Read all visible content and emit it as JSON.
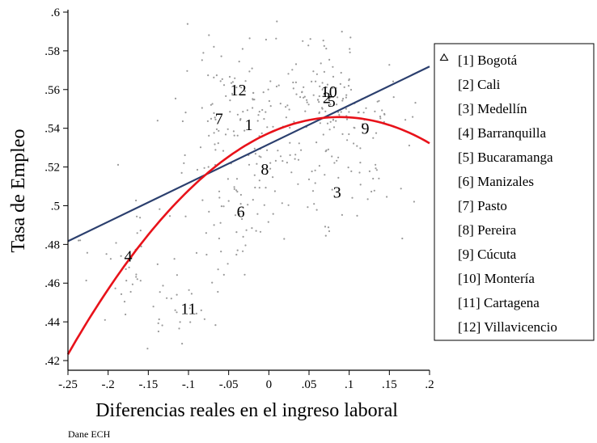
{
  "chart_data": {
    "type": "scatter",
    "title": "",
    "xlabel": "Diferencias reales en el ingreso laboral",
    "ylabel": "Tasa de Empleo",
    "source_note": "Dane ECH",
    "xlim": [
      -0.25,
      0.2
    ],
    "ylim": [
      0.415,
      0.6
    ],
    "x_ticks": [
      -0.25,
      -0.2,
      -0.15,
      -0.1,
      -0.05,
      0,
      0.05,
      0.1,
      0.15,
      0.2
    ],
    "x_tick_labels": [
      "-.25",
      "-.2",
      "-.15",
      "-.1",
      "-.05",
      "0",
      ".05",
      ".1",
      ".15",
      ".2"
    ],
    "y_ticks": [
      0.42,
      0.44,
      0.46,
      0.48,
      0.5,
      0.52,
      0.54,
      0.56,
      0.58,
      0.6
    ],
    "y_tick_labels": [
      ".42",
      ".44",
      ".46",
      ".48",
      ".5",
      ".52",
      ".54",
      ".56",
      ".58",
      ".6"
    ],
    "grid": false,
    "legend_placement": "right",
    "colors": {
      "scatter": "#9a9a9a",
      "linear_fit": "#2b3f6e",
      "quadratic_fit": "#e8121a",
      "text": "#000000"
    },
    "scatter_seed": 7,
    "scatter_count": 420,
    "linear_fit": {
      "intercept": 0.5318,
      "slope": 0.2005
    },
    "quadratic_fit": {
      "a": 0.5375,
      "b": 0.1887,
      "c": -1.0739
    },
    "cities": [
      {
        "id": "1",
        "name": "[1] Bogotá",
        "x": -0.025,
        "y": 0.542
      },
      {
        "id": "2",
        "name": "[2] Cali",
        "x": 0.072,
        "y": 0.556
      },
      {
        "id": "3",
        "name": "[3] Medellín",
        "x": 0.085,
        "y": 0.507
      },
      {
        "id": "4",
        "name": "[4] Barranquilla",
        "x": -0.175,
        "y": 0.474
      },
      {
        "id": "5",
        "name": "[5] Bucaramanga",
        "x": 0.078,
        "y": 0.554
      },
      {
        "id": "6",
        "name": "[6] Manizales",
        "x": -0.035,
        "y": 0.497
      },
      {
        "id": "7",
        "name": "[7] Pasto",
        "x": -0.062,
        "y": 0.545
      },
      {
        "id": "8",
        "name": "[8] Pereira",
        "x": -0.005,
        "y": 0.519
      },
      {
        "id": "9",
        "name": "[9] Cúcuta",
        "x": 0.12,
        "y": 0.54
      },
      {
        "id": "10",
        "name": "[10] Montería",
        "x": 0.075,
        "y": 0.559
      },
      {
        "id": "11",
        "name": "[11] Cartagena",
        "x": -0.1,
        "y": 0.447
      },
      {
        "id": "12",
        "name": "[12] Villavicencio",
        "x": -0.038,
        "y": 0.56
      }
    ]
  }
}
